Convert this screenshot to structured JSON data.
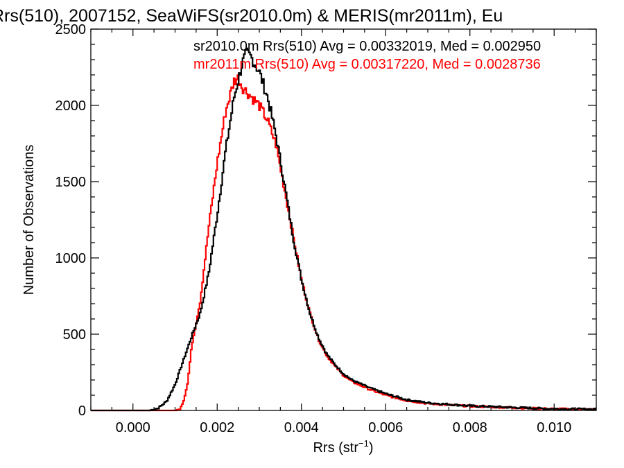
{
  "chart_data": {
    "type": "line",
    "title": "Rrs(510), 2007152, SeaWiFS(sr2010.0m) & MERIS(mr2011m), Eu",
    "xlabel_main": "Rrs (str",
    "xlabel_sup": "−1",
    "xlabel_end": ")",
    "ylabel": "Number of Observations",
    "xlim": [
      -0.001,
      0.011
    ],
    "ylim": [
      0,
      2500
    ],
    "x_ticks": [
      0.0,
      0.002,
      0.004,
      0.006,
      0.008,
      0.01
    ],
    "x_tick_labels": [
      "0.000",
      "0.002",
      "0.004",
      "0.006",
      "0.008",
      "0.010"
    ],
    "y_ticks": [
      0,
      500,
      1000,
      1500,
      2000,
      2500
    ],
    "y_tick_labels": [
      "0",
      "500",
      "1000",
      "1500",
      "2000",
      "2500"
    ],
    "grid": false,
    "series": [
      {
        "name": "sr2010.0m",
        "color": "#000000",
        "annotation": "sr2010.0m Rrs(510) Avg = 0.00332019, Med = 0.002950",
        "points": [
          [
            -0.001,
            0
          ],
          [
            0.0004,
            0
          ],
          [
            0.0006,
            15
          ],
          [
            0.0008,
            60
          ],
          [
            0.001,
            170
          ],
          [
            0.0012,
            330
          ],
          [
            0.0014,
            490
          ],
          [
            0.0016,
            640
          ],
          [
            0.0018,
            900
          ],
          [
            0.002,
            1280
          ],
          [
            0.0022,
            1700
          ],
          [
            0.0024,
            2050
          ],
          [
            0.0026,
            2280
          ],
          [
            0.0027,
            2340
          ],
          [
            0.0028,
            2320
          ],
          [
            0.003,
            2220
          ],
          [
            0.0032,
            2050
          ],
          [
            0.0034,
            1800
          ],
          [
            0.0036,
            1480
          ],
          [
            0.0038,
            1140
          ],
          [
            0.004,
            860
          ],
          [
            0.0042,
            640
          ],
          [
            0.0044,
            480
          ],
          [
            0.0046,
            370
          ],
          [
            0.0048,
            300
          ],
          [
            0.005,
            240
          ],
          [
            0.0052,
            200
          ],
          [
            0.0056,
            150
          ],
          [
            0.006,
            110
          ],
          [
            0.0065,
            70
          ],
          [
            0.007,
            50
          ],
          [
            0.008,
            30
          ],
          [
            0.009,
            20
          ],
          [
            0.01,
            10
          ],
          [
            0.011,
            8
          ]
        ]
      },
      {
        "name": "mr2011m",
        "color": "#ff0000",
        "annotation": "mr2011m Rrs(510) Avg = 0.00317220, Med = 0.0028736",
        "points": [
          [
            -0.001,
            0
          ],
          [
            0.001,
            0
          ],
          [
            0.0011,
            5
          ],
          [
            0.0012,
            60
          ],
          [
            0.0013,
            180
          ],
          [
            0.0014,
            430
          ],
          [
            0.0016,
            720
          ],
          [
            0.0018,
            1200
          ],
          [
            0.002,
            1620
          ],
          [
            0.0022,
            1960
          ],
          [
            0.0024,
            2160
          ],
          [
            0.0025,
            2180
          ],
          [
            0.0026,
            2120
          ],
          [
            0.0028,
            2060
          ],
          [
            0.003,
            2000
          ],
          [
            0.0032,
            1900
          ],
          [
            0.0034,
            1740
          ],
          [
            0.0036,
            1450
          ],
          [
            0.0038,
            1150
          ],
          [
            0.004,
            860
          ],
          [
            0.0042,
            640
          ],
          [
            0.0044,
            470
          ],
          [
            0.0046,
            360
          ],
          [
            0.0048,
            290
          ],
          [
            0.005,
            230
          ],
          [
            0.0052,
            190
          ],
          [
            0.0056,
            140
          ],
          [
            0.006,
            100
          ],
          [
            0.0065,
            65
          ],
          [
            0.007,
            45
          ],
          [
            0.008,
            28
          ],
          [
            0.009,
            18
          ],
          [
            0.01,
            10
          ],
          [
            0.011,
            6
          ]
        ]
      }
    ]
  }
}
